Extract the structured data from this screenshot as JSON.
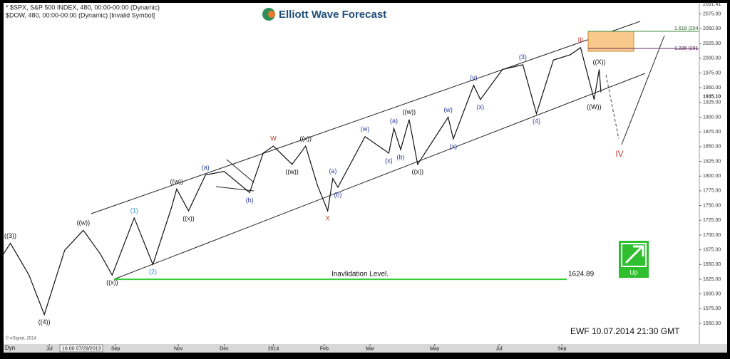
{
  "chart_data": {
    "type": "line",
    "header": [
      "* $SPX, S&P 500 INDEX, 480, 00:00-00:00 (Dynamic)",
      "$DOW, 480, 00:00-00:00 (Dynamic) [Invalid Symbol]"
    ],
    "logo": "Elliott Wave Forecast",
    "footer": "EWF 10.07.2014  21:30 GMT",
    "copyright": "© eSignal, 2014",
    "corner": "Dyn",
    "cursor_label": "16:00 07/29/2013",
    "series": [
      {
        "color": "#111111",
        "x": [
          0,
          4,
          15,
          24,
          36,
          47,
          57,
          64,
          77,
          88,
          99,
          102,
          109,
          119,
          130,
          145,
          153,
          159,
          170,
          178,
          185,
          191,
          194,
          197,
          213,
          227,
          230,
          234,
          239,
          244,
          262,
          265,
          277,
          281,
          294,
          306,
          314,
          324,
          334,
          340,
          348,
          351,
          352
        ],
        "values": [
          1668,
          1686,
          1632,
          1565,
          1674,
          1708,
          1668,
          1632,
          1729,
          1650,
          1747,
          1778,
          1741,
          1802,
          1808,
          1772,
          1839,
          1851,
          1820,
          1851,
          1784,
          1741,
          1796,
          1781,
          1867,
          1839,
          1881,
          1845,
          1896,
          1820,
          1900,
          1863,
          1954,
          1930,
          1981,
          1989,
          1906,
          1997,
          2006,
          2018,
          1930,
          1981,
          1942
        ],
        "labels": [
          null,
          "((3))",
          null,
          "((4))",
          null,
          "((w))",
          null,
          "((x))",
          "(1)",
          "(2)",
          null,
          "((w))",
          "((x))",
          "(a)",
          null,
          "(b)",
          null,
          "W",
          "((w))",
          "((x))",
          null,
          "X",
          "(a)",
          "(b)",
          "(w)",
          "(x)",
          "(a)",
          "(b)",
          "((w))",
          "((x))",
          "(w)",
          "(x)",
          "(y)",
          "(x)",
          null,
          "(3)",
          "(4)",
          null,
          null,
          "III",
          "((W))",
          "((X))",
          null
        ]
      }
    ],
    "xlim": [
      0,
      410
    ],
    "xticks": [
      {
        "value": 27,
        "label": "Jul"
      },
      {
        "value": 66,
        "label": "Sep"
      },
      {
        "value": 103,
        "label": "Nov"
      },
      {
        "value": 130,
        "label": "Dec"
      },
      {
        "value": 159,
        "label": "2014"
      },
      {
        "value": 189,
        "label": "Feb"
      },
      {
        "value": 216,
        "label": "Mar"
      },
      {
        "value": 254,
        "label": "May"
      },
      {
        "value": 292,
        "label": "Jul"
      },
      {
        "value": 329,
        "label": "Sep"
      }
    ],
    "ylim": [
      1515,
      2094
    ],
    "yticks": [
      {
        "value": 1550,
        "label": "1550.00"
      },
      {
        "value": 1575,
        "label": "1575.00"
      },
      {
        "value": 1600,
        "label": "1600.00"
      },
      {
        "value": 1625,
        "label": "1625.00"
      },
      {
        "value": 1650,
        "label": "1650.00"
      },
      {
        "value": 1675,
        "label": "1675.00"
      },
      {
        "value": 1700,
        "label": "1700.00"
      },
      {
        "value": 1725,
        "label": "1725.00"
      },
      {
        "value": 1750,
        "label": "1750.00"
      },
      {
        "value": 1775,
        "label": "1775.00"
      },
      {
        "value": 1800,
        "label": "1800.00"
      },
      {
        "value": 1825,
        "label": "1825.00"
      },
      {
        "value": 1850,
        "label": "1850.00"
      },
      {
        "value": 1875,
        "label": "1875.00"
      },
      {
        "value": 1900,
        "label": "1900.00"
      },
      {
        "value": 1925,
        "label": "1925.00"
      },
      {
        "value": 1950,
        "label": "1950.00"
      },
      {
        "value": 1975,
        "label": "1975.00"
      },
      {
        "value": 2000,
        "label": "2000.00"
      },
      {
        "value": 2025,
        "label": "2025.00"
      },
      {
        "value": 2050,
        "label": "2050.00"
      },
      {
        "value": 2075,
        "label": "2075.00"
      }
    ],
    "high_label": {
      "value": 2091.41,
      "label": "2091.41"
    },
    "last_price": {
      "value": 1935.1,
      "label": "1935.10"
    },
    "invalidation": {
      "text": "Inavlidation Level.",
      "value": 1624.89,
      "label": "1624.89"
    },
    "fib_labels": [
      "1.618 (204",
      "1.236 (201"
    ],
    "projection_label": "IV",
    "signal": "Up"
  }
}
